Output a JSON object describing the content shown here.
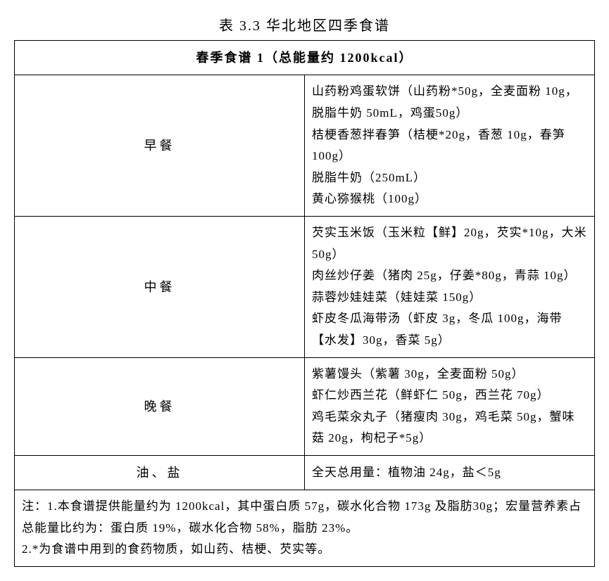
{
  "title": "表 3.3  华北地区四季食谱",
  "header": "春季食谱 1（总能量约 1200kcal）",
  "meals": [
    {
      "label": "早餐",
      "lines": [
        "山药粉鸡蛋软饼（山药粉*50g，全麦面粉 10g，脱脂牛奶 50mL，鸡蛋50g）",
        "桔梗香葱拌春笋（桔梗*20g，香葱 10g，春笋 100g）",
        "脱脂牛奶（250mL）",
        "黄心猕猴桃（100g）"
      ]
    },
    {
      "label": "中餐",
      "lines": [
        "芡实玉米饭（玉米粒【鲜】20g，芡实*10g，大米 50g）",
        "肉丝炒仔姜（猪肉 25g，仔姜*80g，青蒜 10g）",
        "蒜蓉炒娃娃菜（娃娃菜 150g）",
        "虾皮冬瓜海带汤（虾皮 3g，冬瓜 100g，海带【水发】30g，香菜 5g）"
      ]
    },
    {
      "label": "晚餐",
      "lines": [
        "紫薯馒头（紫薯 30g，全麦面粉 50g）",
        "虾仁炒西兰花（鲜虾仁 50g，西兰花 70g）",
        "鸡毛菜汆丸子（猪瘦肉 30g，鸡毛菜 50g，蟹味菇 20g，枸杞子*5g）"
      ]
    }
  ],
  "oil_salt": {
    "label": "油、盐",
    "content": "全天总用量：植物油 24g，盐＜5g"
  },
  "notes": [
    "注：1.本食谱提供能量约为 1200kcal，其中蛋白质 57g，碳水化合物 173g 及脂肪30g；宏量营养素占总能量比约为：蛋白质 19%，碳水化合物 58%，脂肪 23%。",
    "2.*为食谱中用到的食药物质，如山药、桔梗、芡实等。"
  ],
  "styling": {
    "background_color": "#ffffff",
    "text_color": "#000000",
    "border_color": "#000000",
    "title_fontsize": 20,
    "cell_fontsize": 17,
    "header_fontsize": 18,
    "line_height": 1.8,
    "letter_spacing": 1,
    "meal_label_width": 110,
    "font_family": "SimSun"
  }
}
